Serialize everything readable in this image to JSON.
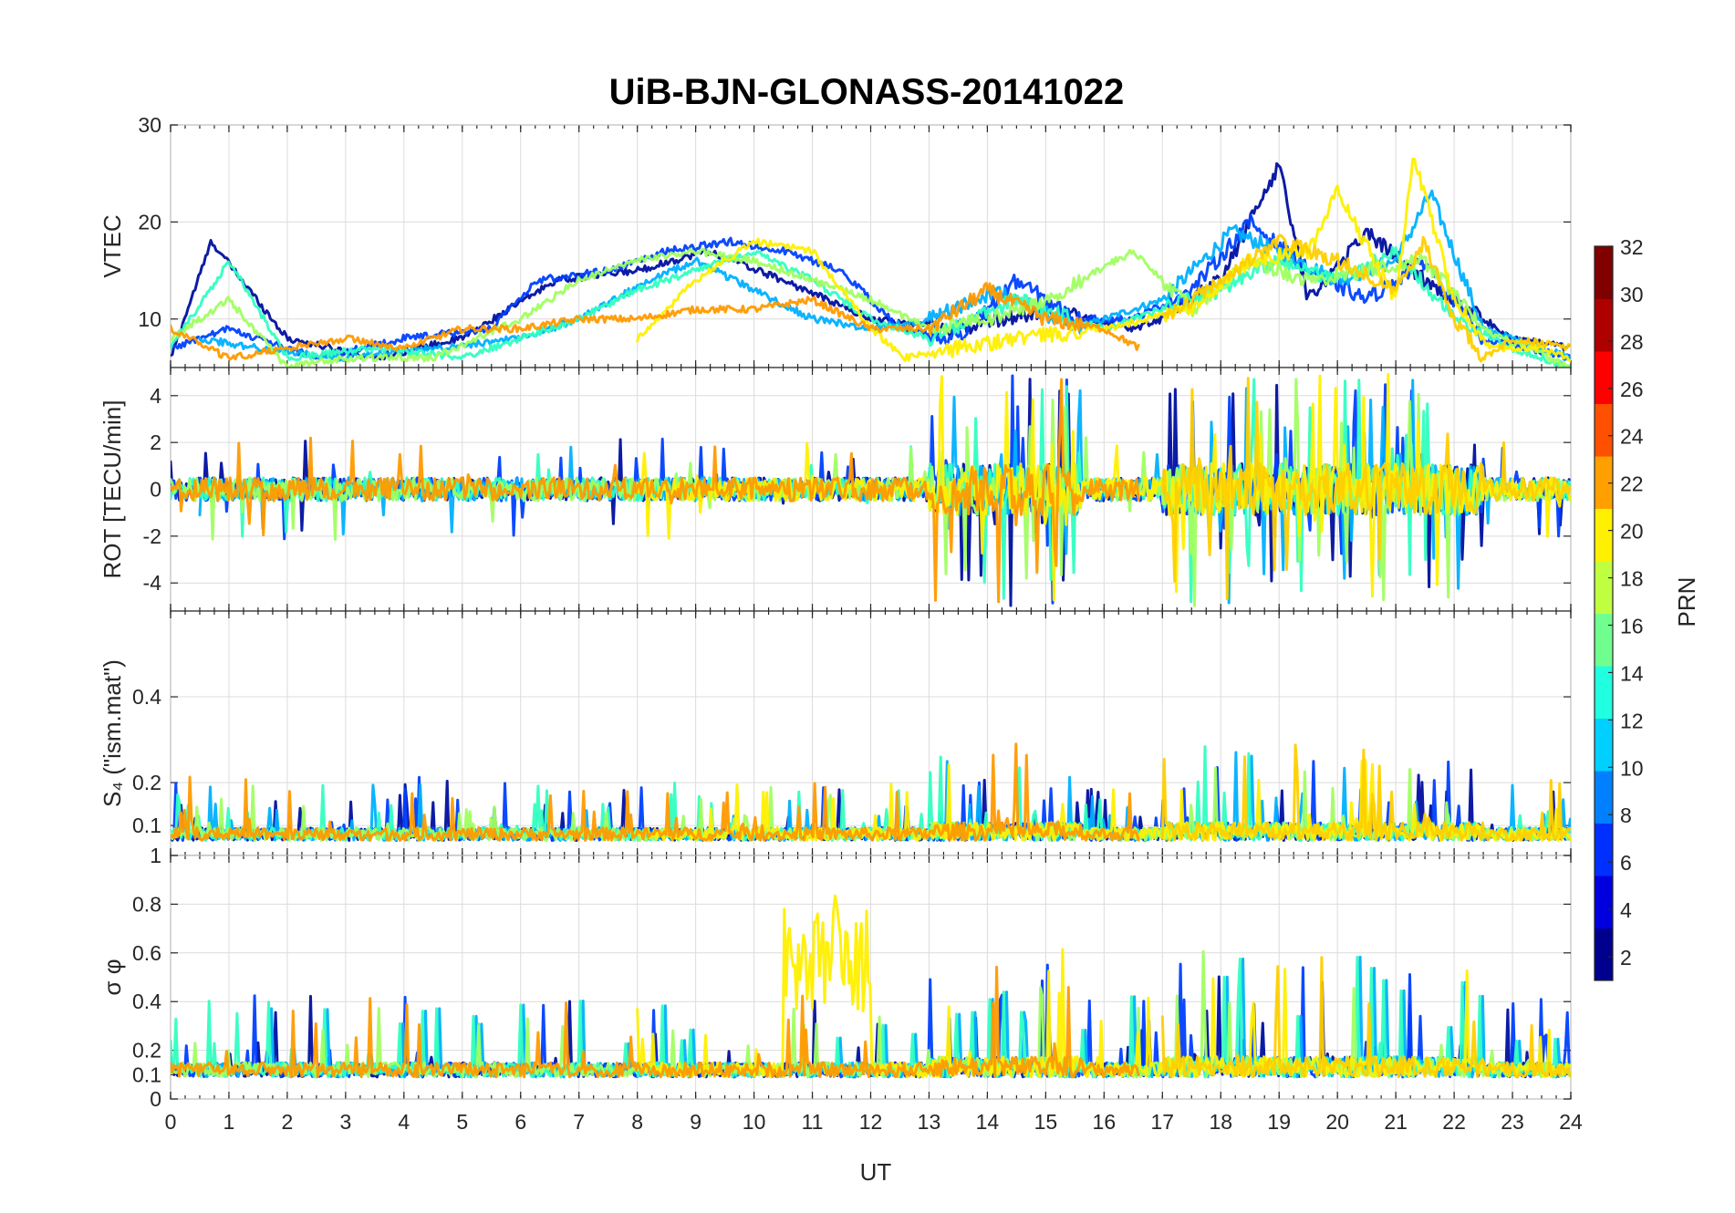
{
  "chart_data": {
    "type": "line",
    "title": "UiB-BJN-GLONASS-20141022",
    "xlabel": "UT",
    "xlim": [
      0,
      24
    ],
    "x_ticks": [
      "0",
      "1",
      "2",
      "3",
      "4",
      "5",
      "6",
      "7",
      "8",
      "9",
      "10",
      "11",
      "12",
      "13",
      "14",
      "15",
      "16",
      "17",
      "18",
      "19",
      "20",
      "21",
      "22",
      "23",
      "24"
    ],
    "panels": [
      {
        "id": "vtec",
        "ylabel": "VTEC",
        "ylim": [
          5,
          30
        ],
        "y_ticks": [
          {
            "value": 10,
            "label": "10"
          },
          {
            "value": 20,
            "label": "20"
          },
          {
            "value": 30,
            "label": "30"
          }
        ]
      },
      {
        "id": "rot",
        "ylabel": "ROT [TECU/min]",
        "ylim": [
          -5.2,
          5.2
        ],
        "y_ticks": [
          {
            "value": -4,
            "label": "-4"
          },
          {
            "value": -2,
            "label": "-2"
          },
          {
            "value": 0,
            "label": "0"
          },
          {
            "value": 2,
            "label": "2"
          },
          {
            "value": 4,
            "label": "4"
          }
        ]
      },
      {
        "id": "s4",
        "ylabel": "S₄ (\"ism.mat\")",
        "ylim": [
          0.03,
          0.6
        ],
        "y_ticks": [
          {
            "value": 0.1,
            "label": "0.1"
          },
          {
            "value": 0.2,
            "label": "0.2"
          },
          {
            "value": 0.4,
            "label": "0.4"
          }
        ]
      },
      {
        "id": "sigma",
        "ylabel": "σ φ",
        "ylim": [
          0,
          1
        ],
        "y_ticks": [
          {
            "value": 0,
            "label": "0"
          },
          {
            "value": 0.1,
            "label": "0.1"
          },
          {
            "value": 0.2,
            "label": "0.2"
          },
          {
            "value": 0.4,
            "label": "0.4"
          },
          {
            "value": 0.6,
            "label": "0.6"
          },
          {
            "value": 0.8,
            "label": "0.8"
          },
          {
            "value": 1,
            "label": "1"
          }
        ]
      }
    ],
    "colorbar": {
      "label": "PRN",
      "range": [
        1,
        32
      ],
      "ticks": [
        "2",
        "4",
        "6",
        "8",
        "10",
        "12",
        "14",
        "16",
        "18",
        "20",
        "22",
        "24",
        "26",
        "28",
        "30",
        "32"
      ],
      "colors": [
        "#00008f",
        "#0000df",
        "#0030ff",
        "#0080ff",
        "#00d0ff",
        "#20ffdf",
        "#70ff8f",
        "#c0ff40",
        "#ffef00",
        "#ffa000",
        "#ff5000",
        "#ff0000",
        "#af0000",
        "#800000"
      ]
    },
    "series": [
      {
        "prn": 1,
        "color": "#000f9f",
        "x": [
          0,
          0.7,
          2,
          3.5,
          5,
          6.6,
          8,
          9.2,
          10.5,
          12,
          13.5,
          15,
          16.5,
          17,
          18,
          19,
          19.5,
          20.5,
          21.5,
          22.5,
          23,
          24
        ],
        "vtec": [
          6,
          18,
          8,
          6,
          8,
          14,
          15,
          17,
          14,
          10,
          9,
          11,
          9,
          10,
          14,
          26,
          12,
          19,
          14,
          10,
          8,
          7
        ]
      },
      {
        "prn": 4,
        "color": "#0040ff",
        "x": [
          0,
          1,
          2.5,
          4,
          5.5,
          6.3,
          7.5,
          8.5,
          9.6,
          10.5,
          11.5,
          12.5,
          13.5,
          14.5,
          15.5,
          16.5,
          17.5,
          18.5,
          19.5,
          20.5,
          21.5,
          22.5,
          24
        ],
        "vtec": [
          7,
          9,
          6,
          8,
          9,
          14,
          15,
          17,
          18,
          17,
          15,
          9,
          8,
          14,
          10,
          10,
          13,
          20,
          15,
          12,
          16,
          8,
          6
        ]
      },
      {
        "prn": 9,
        "color": "#00b0ff",
        "x": [
          0.5,
          1.5,
          3,
          4.5,
          6,
          7,
          8.2,
          9,
          10,
          11,
          12,
          13,
          14.2,
          15.5,
          17,
          18.2,
          19,
          20,
          21,
          21.6,
          22.5,
          24
        ],
        "vtec": [
          8,
          7,
          6,
          7,
          8,
          10,
          14,
          16,
          13,
          10,
          9,
          10,
          13,
          9,
          12,
          19,
          17,
          14,
          16,
          23,
          9,
          6
        ]
      },
      {
        "prn": 14,
        "color": "#30ffc0",
        "x": [
          0,
          1,
          2,
          3.5,
          5,
          6,
          7,
          8,
          9,
          10,
          11,
          12,
          13,
          14.5,
          16,
          17,
          18,
          19,
          20,
          21,
          22,
          23,
          24
        ],
        "vtec": [
          7,
          16,
          6,
          7,
          6,
          8,
          10,
          13,
          15,
          17,
          14,
          10,
          8,
          12,
          9,
          11,
          13,
          16,
          14,
          17,
          10,
          7,
          5
        ]
      },
      {
        "prn": 17,
        "color": "#a0ff60",
        "x": [
          0,
          1,
          2,
          3,
          4.5,
          6,
          7,
          8,
          9,
          10,
          11,
          12,
          13,
          14,
          15,
          16.5,
          17.5,
          18.5,
          19.5,
          20.5,
          21.5,
          22.5,
          24
        ],
        "vtec": [
          8,
          12,
          5,
          6,
          6,
          10,
          14,
          16,
          17,
          16,
          14,
          12,
          9,
          10,
          12,
          17,
          11,
          16,
          14,
          15,
          16,
          9,
          5
        ]
      },
      {
        "prn": 20,
        "color": "#ffef00",
        "x": [
          8,
          9,
          10,
          11,
          12,
          12.6,
          13.5,
          14.5,
          16,
          17.5,
          18.5,
          19.5,
          20,
          21,
          21.3,
          22,
          22.6,
          23.5,
          24
        ],
        "vtec": [
          8,
          14,
          18,
          17,
          9,
          6,
          7,
          8,
          9,
          11,
          16,
          17,
          23,
          12,
          27,
          12,
          7,
          7,
          6
        ]
      },
      {
        "prn": 23,
        "color": "#ff9a00",
        "x": [
          0,
          1,
          2,
          3,
          4,
          5,
          6,
          7,
          8,
          9,
          10,
          11,
          12,
          13,
          14,
          15,
          16,
          16.6
        ],
        "vtec": [
          9,
          6,
          7,
          8,
          7,
          9,
          9,
          10,
          10,
          11,
          11,
          12,
          9,
          9,
          13,
          10,
          9,
          7
        ]
      },
      {
        "prn": 22,
        "color": "#ffcf00",
        "x": [
          17,
          18,
          19,
          20,
          21,
          21.5,
          22,
          22.5,
          23,
          24
        ],
        "vtec": [
          10,
          14,
          18,
          16,
          13,
          18,
          10,
          6,
          8,
          7
        ]
      }
    ]
  }
}
